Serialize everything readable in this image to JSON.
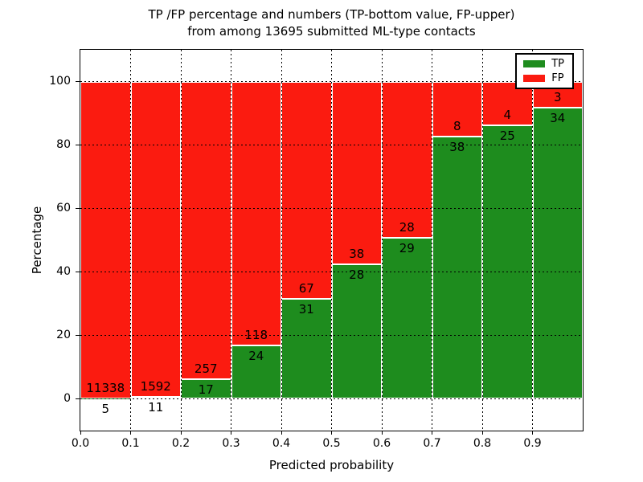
{
  "figure": {
    "title_line1": "TP /FP percentage and numbers (TP-bottom value, FP-upper)",
    "title_line2": "from among 13695 submitted ML-type contacts",
    "xlabel": "Predicted probability",
    "ylabel": "Percentage"
  },
  "chart_data": {
    "type": "bar",
    "stacked": true,
    "normalized": "each bin scaled to 100%",
    "title": "TP /FP percentage and numbers (TP-bottom value, FP-upper) from among 13695 submitted ML-type contacts",
    "xlabel": "Predicted probability",
    "ylabel": "Percentage",
    "total_submitted_contacts": 13695,
    "bin_edges": [
      0.0,
      0.1,
      0.2,
      0.3,
      0.4,
      0.5,
      0.6,
      0.7,
      0.8,
      0.9,
      1.0
    ],
    "series": [
      {
        "name": "TP",
        "color": "#1e8c1e",
        "counts": [
          5,
          11,
          17,
          24,
          31,
          28,
          29,
          38,
          25,
          34
        ]
      },
      {
        "name": "FP",
        "color": "#fb1b10",
        "counts": [
          11338,
          1592,
          257,
          118,
          67,
          38,
          28,
          8,
          4,
          3
        ]
      }
    ],
    "tp_percent_approx": [
      0.04,
      0.69,
      6.2,
      16.9,
      31.6,
      42.4,
      50.9,
      82.6,
      86.2,
      91.9
    ],
    "ylim": [
      -10,
      110
    ],
    "yticks": [
      0,
      20,
      40,
      60,
      80,
      100
    ],
    "xticks": [
      "0.0",
      "0.1",
      "0.2",
      "0.3",
      "0.4",
      "0.5",
      "0.6",
      "0.7",
      "0.8",
      "0.9"
    ],
    "grid": true,
    "legend": {
      "position": "upper right",
      "entries": [
        {
          "label": "TP",
          "color": "#1e8c1e"
        },
        {
          "label": "FP",
          "color": "#fb1b10"
        }
      ]
    }
  }
}
